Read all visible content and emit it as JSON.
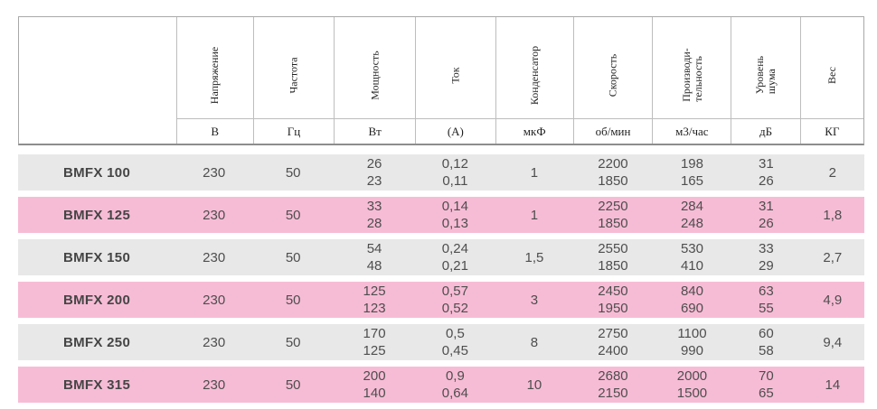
{
  "colors": {
    "row_gray": "#e8e8e8",
    "row_pink": "#f7bcd5",
    "border_gray": "#a8a8a8",
    "text_dark_gray": "#4e4e4e"
  },
  "header": {
    "columns": [
      {
        "label": "",
        "unit": ""
      },
      {
        "label": "Напряжение",
        "unit": "В"
      },
      {
        "label": "Частота",
        "unit": "Гц"
      },
      {
        "label": "Мощность",
        "unit": "Вт"
      },
      {
        "label": "Ток",
        "unit": "(А)"
      },
      {
        "label": "Конденсатор",
        "unit": "мкФ"
      },
      {
        "label": "Скорость",
        "unit": "об/мин"
      },
      {
        "label": "Производи-\nтельность",
        "unit": "м3/час"
      },
      {
        "label": "Уровень\nшума",
        "unit": "дБ"
      },
      {
        "label": "Вес",
        "unit": "КГ"
      }
    ]
  },
  "rows": [
    {
      "model": "BMFX 100",
      "voltage": "230",
      "frequency": "50",
      "power": "26\n23",
      "current": "0,12\n0,11",
      "capacitor": "1",
      "speed": "2200\n1850",
      "airflow": "198\n165",
      "noise": "31\n26",
      "weight": "2"
    },
    {
      "model": "BMFX 125",
      "voltage": "230",
      "frequency": "50",
      "power": "33\n28",
      "current": "0,14\n0,13",
      "capacitor": "1",
      "speed": "2250\n1850",
      "airflow": "284\n248",
      "noise": "31\n26",
      "weight": "1,8"
    },
    {
      "model": "BMFX 150",
      "voltage": "230",
      "frequency": "50",
      "power": "54\n48",
      "current": "0,24\n0,21",
      "capacitor": "1,5",
      "speed": "2550\n1850",
      "airflow": "530\n410",
      "noise": "33\n29",
      "weight": "2,7"
    },
    {
      "model": "BMFX 200",
      "voltage": "230",
      "frequency": "50",
      "power": "125\n123",
      "current": "0,57\n0,52",
      "capacitor": "3",
      "speed": "2450\n1950",
      "airflow": "840\n690",
      "noise": "63\n55",
      "weight": "4,9"
    },
    {
      "model": "BMFX 250",
      "voltage": "230",
      "frequency": "50",
      "power": "170\n125",
      "current": "0,5\n0,45",
      "capacitor": "8",
      "speed": "2750\n2400",
      "airflow": "1100\n990",
      "noise": "60\n58",
      "weight": "9,4"
    },
    {
      "model": "BMFX 315",
      "voltage": "230",
      "frequency": "50",
      "power": "200\n140",
      "current": "0,9\n0,64",
      "capacitor": "10",
      "speed": "2680\n2150",
      "airflow": "2000\n1500",
      "noise": "70\n65",
      "weight": "14"
    }
  ]
}
